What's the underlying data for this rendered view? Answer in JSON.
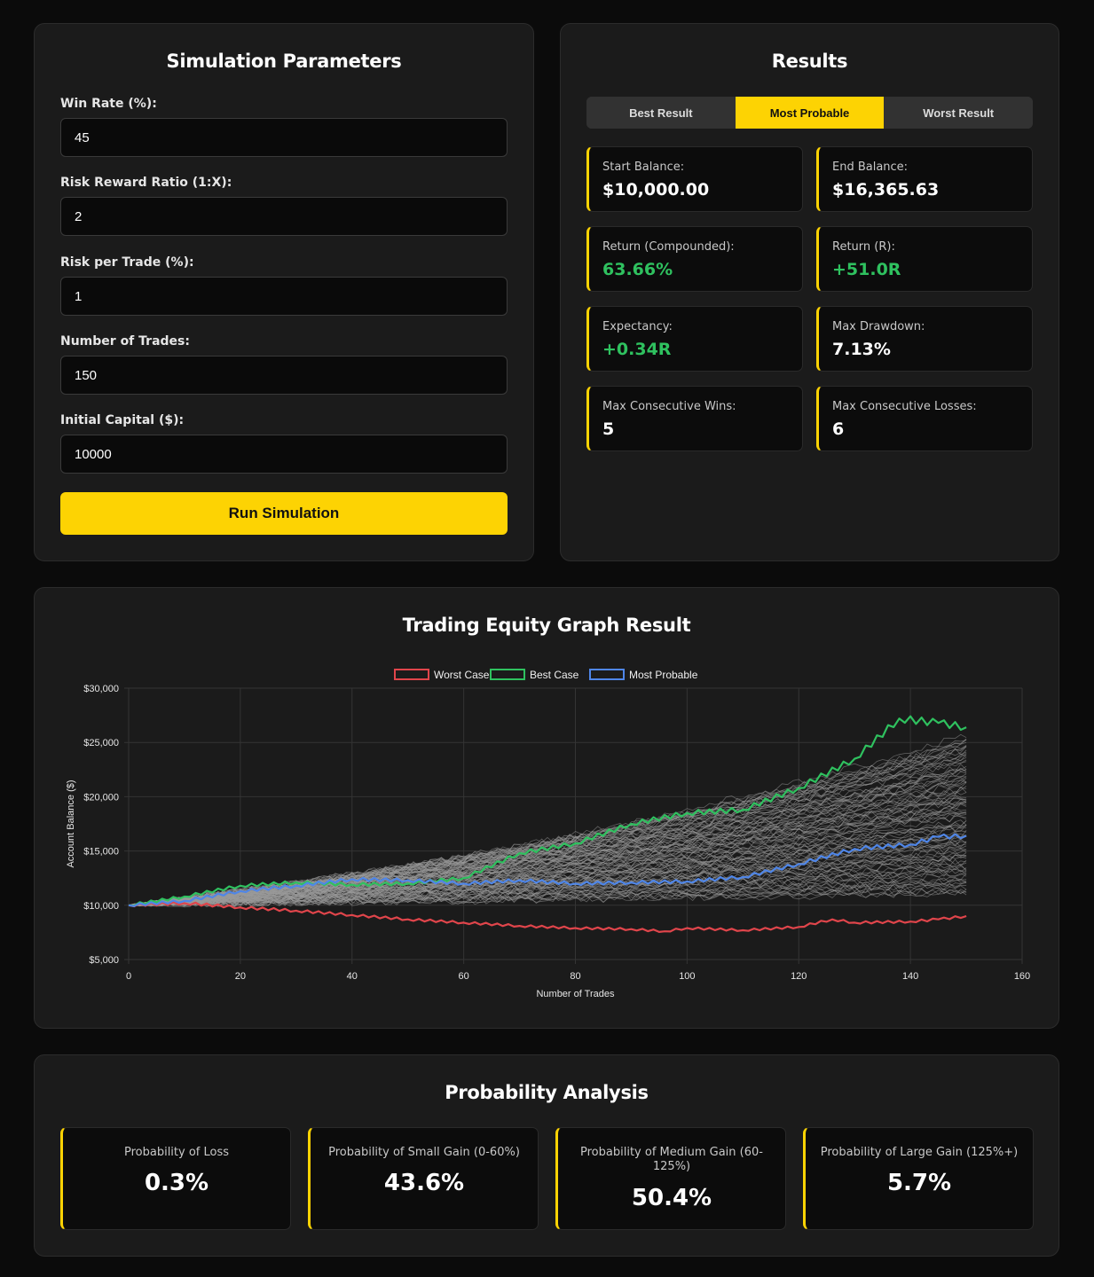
{
  "params": {
    "title": "Simulation Parameters",
    "fields": [
      {
        "label": "Win Rate (%):",
        "value": "45"
      },
      {
        "label": "Risk Reward Ratio (1:X):",
        "value": "2"
      },
      {
        "label": "Risk per Trade (%):",
        "value": "1"
      },
      {
        "label": "Number of Trades:",
        "value": "150"
      },
      {
        "label": "Initial Capital ($):",
        "value": "10000"
      }
    ],
    "run_label": "Run Simulation"
  },
  "results": {
    "title": "Results",
    "tabs": [
      {
        "label": "Best Result"
      },
      {
        "label": "Most Probable"
      },
      {
        "label": "Worst Result"
      }
    ],
    "active_tab": "Most Probable",
    "stats": [
      {
        "label": "Start Balance:",
        "value": "$10,000.00"
      },
      {
        "label": "End Balance:",
        "value": "$16,365.63"
      },
      {
        "label": "Return (Compounded):",
        "value": "63.66%"
      },
      {
        "label": "Return (R):",
        "value": "+51.0R"
      },
      {
        "label": "Expectancy:",
        "value": "+0.34R"
      },
      {
        "label": "Max Drawdown:",
        "value": "7.13%"
      },
      {
        "label": "Max Consecutive Wins:",
        "value": "5"
      },
      {
        "label": "Max Consecutive Losses:",
        "value": "6"
      }
    ]
  },
  "chart": {
    "title": "Trading Equity Graph Result"
  },
  "chart_data": {
    "type": "line",
    "title": "Trading Equity Graph Result",
    "xlabel": "Number of Trades",
    "ylabel": "Account Balance ($)",
    "xlim": [
      0,
      160
    ],
    "ylim": [
      5000,
      30000
    ],
    "x_ticks": [
      0,
      20,
      40,
      60,
      80,
      100,
      120,
      140,
      160
    ],
    "y_ticks": [
      5000,
      10000,
      15000,
      20000,
      25000,
      30000
    ],
    "y_tick_labels": [
      "$5,000",
      "$10,000",
      "$15,000",
      "$20,000",
      "$25,000",
      "$30,000"
    ],
    "legend_position": "top",
    "grid": true,
    "background_series": {
      "name": "Simulations",
      "count": 100,
      "color": "#9a9a9a"
    },
    "series": [
      {
        "name": "Worst Case",
        "color": "#e0454b",
        "x": [
          0,
          10,
          20,
          30,
          40,
          50,
          60,
          70,
          80,
          90,
          96,
          100,
          110,
          120,
          126,
          130,
          140,
          145,
          150
        ],
        "y": [
          10000,
          10200,
          9800,
          9500,
          9100,
          8700,
          8400,
          8100,
          7900,
          7800,
          7600,
          7900,
          7700,
          8000,
          8700,
          8400,
          8500,
          8700,
          9000
        ]
      },
      {
        "name": "Best Case",
        "color": "#2fc15f",
        "x": [
          0,
          10,
          20,
          30,
          40,
          50,
          60,
          70,
          80,
          90,
          100,
          110,
          120,
          130,
          138,
          145,
          150
        ],
        "y": [
          10000,
          10800,
          11800,
          12100,
          11900,
          12000,
          12500,
          14800,
          15700,
          17500,
          18500,
          18800,
          20800,
          23500,
          27200,
          26800,
          26400
        ]
      },
      {
        "name": "Most Probable",
        "color": "#4f86e8",
        "x": [
          0,
          10,
          20,
          30,
          40,
          50,
          60,
          70,
          80,
          90,
          100,
          110,
          120,
          130,
          140,
          145,
          150
        ],
        "y": [
          10000,
          10400,
          11300,
          11800,
          12400,
          12300,
          12000,
          12300,
          12000,
          12100,
          12200,
          12600,
          13800,
          15200,
          15600,
          16300,
          16400
        ]
      }
    ]
  },
  "probability": {
    "title": "Probability Analysis",
    "cards": [
      {
        "label": "Probability of Loss",
        "value": "0.3%"
      },
      {
        "label": "Probability of Small Gain (0-60%)",
        "value": "43.6%"
      },
      {
        "label": "Probability of Medium Gain (60-125%)",
        "value": "50.4%"
      },
      {
        "label": "Probability of Large Gain (125%+)",
        "value": "5.7%"
      }
    ]
  },
  "colors": {
    "accent": "#fdd303",
    "positive": "#2fc15f",
    "panel": "#1b1b1b",
    "background": "#0b0b0b"
  }
}
